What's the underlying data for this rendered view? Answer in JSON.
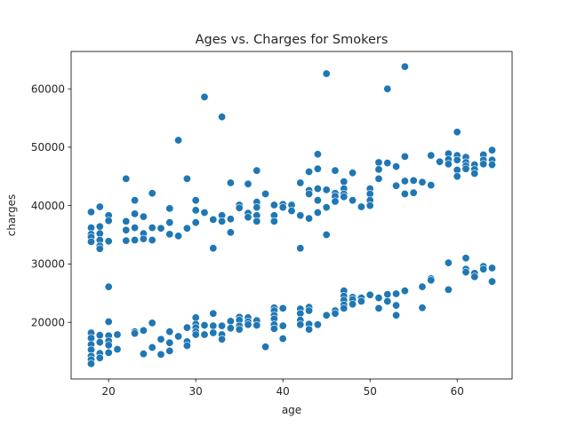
{
  "chart_data": {
    "type": "scatter",
    "title": "Ages vs. Charges for Smokers",
    "xlabel": "age",
    "ylabel": "charges",
    "xlim": [
      15.7,
      66.3
    ],
    "ylim": [
      10300,
      66400
    ],
    "xticks": [
      20,
      30,
      40,
      50,
      60
    ],
    "yticks": [
      20000,
      30000,
      40000,
      50000,
      60000
    ],
    "xtick_labels": [
      "20",
      "30",
      "40",
      "50",
      "60"
    ],
    "ytick_labels": [
      "20000",
      "30000",
      "40000",
      "50000",
      "60000"
    ],
    "grid": false,
    "legend": "none",
    "marker_color": "#1f77b4",
    "points": [
      [
        18,
        38900
      ],
      [
        18,
        36200
      ],
      [
        18,
        35100
      ],
      [
        18,
        34600
      ],
      [
        18,
        33800
      ],
      [
        19,
        39800
      ],
      [
        19,
        36400
      ],
      [
        19,
        35200
      ],
      [
        19,
        34100
      ],
      [
        19,
        33100
      ],
      [
        19,
        32600
      ],
      [
        20,
        38300
      ],
      [
        20,
        37400
      ],
      [
        20,
        33900
      ],
      [
        20,
        26100
      ],
      [
        20,
        20100
      ],
      [
        22,
        44600
      ],
      [
        22,
        37300
      ],
      [
        22,
        35800
      ],
      [
        22,
        34000
      ],
      [
        23,
        40900
      ],
      [
        23,
        38600
      ],
      [
        23,
        36200
      ],
      [
        23,
        34100
      ],
      [
        24,
        38100
      ],
      [
        24,
        35200
      ],
      [
        24,
        34300
      ],
      [
        25,
        42100
      ],
      [
        25,
        36200
      ],
      [
        25,
        34100
      ],
      [
        26,
        36100
      ],
      [
        27,
        39500
      ],
      [
        27,
        37100
      ],
      [
        27,
        35100
      ],
      [
        28,
        51200
      ],
      [
        28,
        34800
      ],
      [
        29,
        44600
      ],
      [
        29,
        36100
      ],
      [
        30,
        40900
      ],
      [
        30,
        39200
      ],
      [
        30,
        37100
      ],
      [
        31,
        58600
      ],
      [
        31,
        38800
      ],
      [
        32,
        37600
      ],
      [
        32,
        32700
      ],
      [
        33,
        55200
      ],
      [
        33,
        38300
      ],
      [
        33,
        37300
      ],
      [
        34,
        43900
      ],
      [
        34,
        37700
      ],
      [
        34,
        35400
      ],
      [
        35,
        40100
      ],
      [
        35,
        39600
      ],
      [
        36,
        43700
      ],
      [
        36,
        38700
      ],
      [
        36,
        38000
      ],
      [
        37,
        46000
      ],
      [
        37,
        40600
      ],
      [
        37,
        39700
      ],
      [
        37,
        38300
      ],
      [
        37,
        37300
      ],
      [
        38,
        42000
      ],
      [
        39,
        40100
      ],
      [
        39,
        38300
      ],
      [
        39,
        37300
      ],
      [
        40,
        40200
      ],
      [
        40,
        39700
      ],
      [
        41,
        40100
      ],
      [
        41,
        39100
      ],
      [
        42,
        43900
      ],
      [
        42,
        38300
      ],
      [
        42,
        32700
      ],
      [
        43,
        45800
      ],
      [
        43,
        42600
      ],
      [
        43,
        42000
      ],
      [
        43,
        37800
      ],
      [
        44,
        48800
      ],
      [
        44,
        46300
      ],
      [
        44,
        42900
      ],
      [
        44,
        40900
      ],
      [
        44,
        38800
      ],
      [
        45,
        62600
      ],
      [
        45,
        42700
      ],
      [
        45,
        39700
      ],
      [
        45,
        35000
      ],
      [
        46,
        46000
      ],
      [
        46,
        42100
      ],
      [
        46,
        41600
      ],
      [
        46,
        40700
      ],
      [
        47,
        44100
      ],
      [
        47,
        42900
      ],
      [
        47,
        42000
      ],
      [
        47,
        41500
      ],
      [
        48,
        45600
      ],
      [
        48,
        40900
      ],
      [
        49,
        39800
      ],
      [
        50,
        42900
      ],
      [
        50,
        42000
      ],
      [
        50,
        40900
      ],
      [
        50,
        40000
      ],
      [
        51,
        47400
      ],
      [
        51,
        46200
      ],
      [
        51,
        44600
      ],
      [
        52,
        60000
      ],
      [
        52,
        47300
      ],
      [
        53,
        46700
      ],
      [
        53,
        43400
      ],
      [
        54,
        63800
      ],
      [
        54,
        48400
      ],
      [
        54,
        44200
      ],
      [
        54,
        42000
      ],
      [
        55,
        44300
      ],
      [
        55,
        42200
      ],
      [
        56,
        44000
      ],
      [
        57,
        48600
      ],
      [
        57,
        43500
      ],
      [
        58,
        47500
      ],
      [
        59,
        48900
      ],
      [
        59,
        47900
      ],
      [
        59,
        47100
      ],
      [
        60,
        52600
      ],
      [
        60,
        48600
      ],
      [
        60,
        47800
      ],
      [
        60,
        46100
      ],
      [
        60,
        45000
      ],
      [
        61,
        48300
      ],
      [
        61,
        47400
      ],
      [
        61,
        46800
      ],
      [
        61,
        46300
      ],
      [
        62,
        47000
      ],
      [
        62,
        46200
      ],
      [
        62,
        45500
      ],
      [
        63,
        48700
      ],
      [
        63,
        47800
      ],
      [
        63,
        47100
      ],
      [
        64,
        49500
      ],
      [
        64,
        47800
      ],
      [
        64,
        47000
      ],
      [
        18,
        18200
      ],
      [
        18,
        17300
      ],
      [
        18,
        16200
      ],
      [
        18,
        15300
      ],
      [
        18,
        14200
      ],
      [
        18,
        13600
      ],
      [
        18,
        12900
      ],
      [
        19,
        17800
      ],
      [
        19,
        16600
      ],
      [
        19,
        14700
      ],
      [
        19,
        13900
      ],
      [
        20,
        17700
      ],
      [
        20,
        16800
      ],
      [
        20,
        16100
      ],
      [
        20,
        14800
      ],
      [
        21,
        17900
      ],
      [
        21,
        15400
      ],
      [
        23,
        18400
      ],
      [
        23,
        18100
      ],
      [
        24,
        18600
      ],
      [
        24,
        14600
      ],
      [
        25,
        19900
      ],
      [
        25,
        15700
      ],
      [
        26,
        17100
      ],
      [
        26,
        14500
      ],
      [
        27,
        18400
      ],
      [
        27,
        16500
      ],
      [
        27,
        15100
      ],
      [
        28,
        17600
      ],
      [
        29,
        19100
      ],
      [
        29,
        16700
      ],
      [
        29,
        16000
      ],
      [
        30,
        20800
      ],
      [
        30,
        19700
      ],
      [
        30,
        19100
      ],
      [
        30,
        18400
      ],
      [
        30,
        17900
      ],
      [
        31,
        19500
      ],
      [
        31,
        17900
      ],
      [
        32,
        21500
      ],
      [
        32,
        19400
      ],
      [
        32,
        18200
      ],
      [
        33,
        19400
      ],
      [
        33,
        17900
      ],
      [
        33,
        17100
      ],
      [
        34,
        20200
      ],
      [
        34,
        19000
      ],
      [
        35,
        20900
      ],
      [
        35,
        20400
      ],
      [
        35,
        19400
      ],
      [
        35,
        18800
      ],
      [
        36,
        20800
      ],
      [
        36,
        20100
      ],
      [
        36,
        19600
      ],
      [
        37,
        20300
      ],
      [
        37,
        19500
      ],
      [
        38,
        15800
      ],
      [
        39,
        22500
      ],
      [
        39,
        22000
      ],
      [
        39,
        21200
      ],
      [
        39,
        20600
      ],
      [
        39,
        19600
      ],
      [
        39,
        18900
      ],
      [
        40,
        22400
      ],
      [
        40,
        19400
      ],
      [
        40,
        17200
      ],
      [
        42,
        22300
      ],
      [
        42,
        21500
      ],
      [
        42,
        20400
      ],
      [
        42,
        19600
      ],
      [
        43,
        22600
      ],
      [
        43,
        22000
      ],
      [
        43,
        19700
      ],
      [
        43,
        18800
      ],
      [
        44,
        19600
      ],
      [
        45,
        21200
      ],
      [
        46,
        22000
      ],
      [
        46,
        21500
      ],
      [
        47,
        25400
      ],
      [
        47,
        24500
      ],
      [
        47,
        23800
      ],
      [
        47,
        23000
      ],
      [
        47,
        22400
      ],
      [
        48,
        24300
      ],
      [
        48,
        23900
      ],
      [
        48,
        23100
      ],
      [
        49,
        24200
      ],
      [
        49,
        23600
      ],
      [
        50,
        24700
      ],
      [
        51,
        24200
      ],
      [
        51,
        22400
      ],
      [
        52,
        24800
      ],
      [
        52,
        23600
      ],
      [
        53,
        24900
      ],
      [
        53,
        22900
      ],
      [
        53,
        21200
      ],
      [
        54,
        25400
      ],
      [
        56,
        26100
      ],
      [
        56,
        22500
      ],
      [
        57,
        27500
      ],
      [
        57,
        27200
      ],
      [
        59,
        30200
      ],
      [
        59,
        25600
      ],
      [
        61,
        31000
      ],
      [
        61,
        29100
      ],
      [
        61,
        28600
      ],
      [
        62,
        28400
      ],
      [
        62,
        27800
      ],
      [
        63,
        29600
      ],
      [
        63,
        29100
      ],
      [
        64,
        29300
      ],
      [
        64,
        27000
      ]
    ]
  }
}
